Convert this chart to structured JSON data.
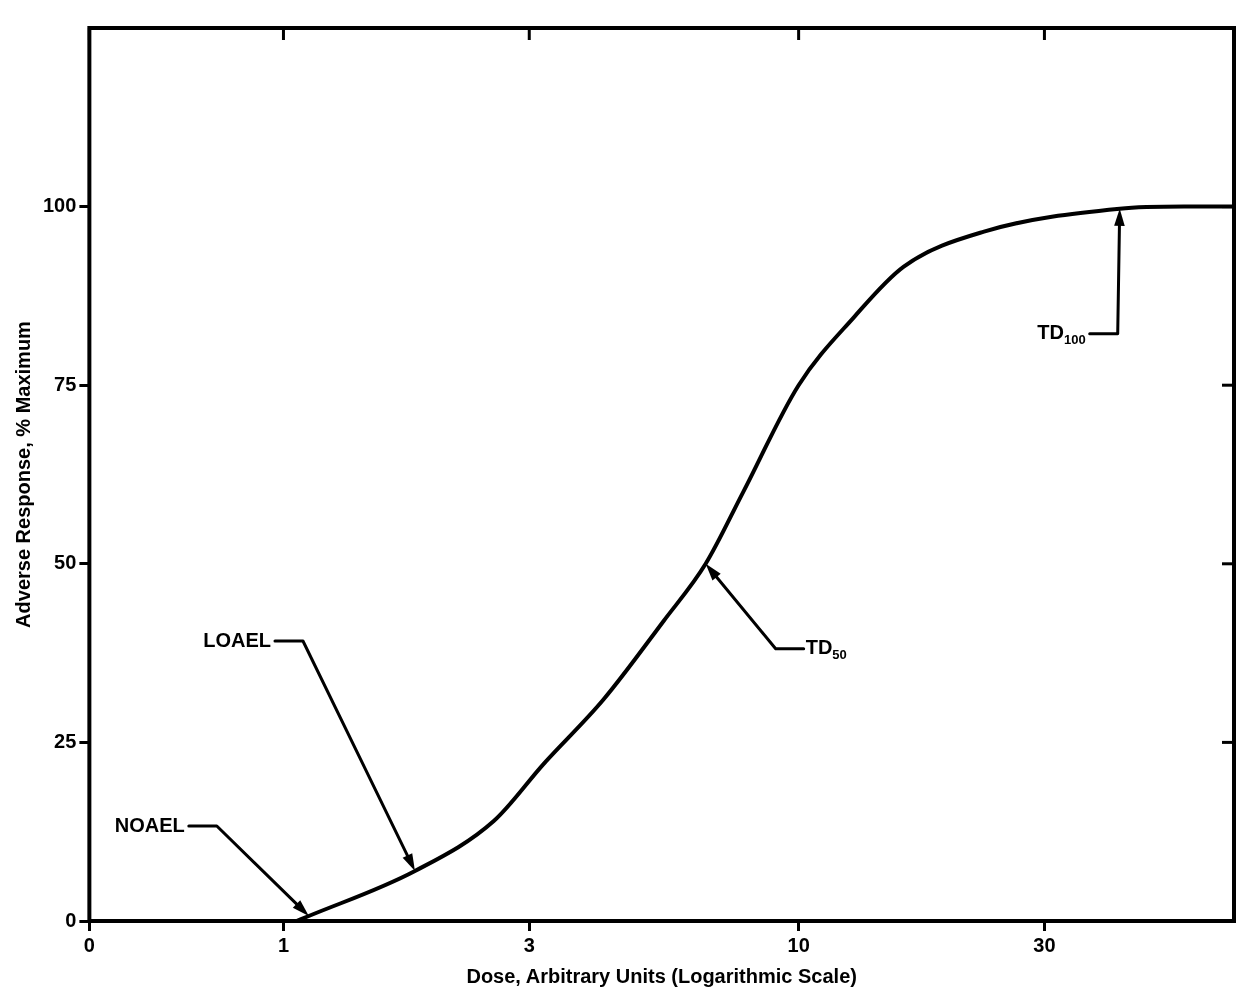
{
  "chart_data": {
    "type": "line",
    "xlabel": "Dose, Arbitrary Units (Logarithmic Scale)",
    "ylabel": "Adverse Response, % Maximum",
    "log": "x",
    "grid": false,
    "legend": false,
    "marker": "none",
    "line_style": "solid",
    "x": [
      1.06,
      1.12,
      1.8,
      2.56,
      3.2,
      4.18,
      5.47,
      6.6,
      7.8,
      10,
      12.8,
      16,
      22.9,
      42,
      56,
      70
    ],
    "series": [
      {
        "color": "#000000",
        "values": [
          0,
          0.7,
          7,
          14,
          22,
          31,
          42,
          50,
          60,
          75,
          84.5,
          91.6,
          96.5,
          99.7,
          100,
          100
        ]
      }
    ],
    "xlim": [
      0.42,
      70
    ],
    "xticks": [
      {
        "value": 0.42,
        "label": "0"
      },
      1,
      3,
      10,
      30
    ],
    "ylim": [
      0,
      125
    ],
    "yticks": [
      0,
      25,
      50,
      75,
      100
    ],
    "annotations": [
      {
        "text": "NOAEL",
        "x": 1.12,
        "y": 0.7
      },
      {
        "text": "LOAEL",
        "x": 1.8,
        "y": 7
      },
      {
        "text": "TD$_{50}$",
        "x": 6.6,
        "y": 50
      },
      {
        "text": "TD$_{100}$",
        "x": 42,
        "y": 99.7
      }
    ]
  }
}
